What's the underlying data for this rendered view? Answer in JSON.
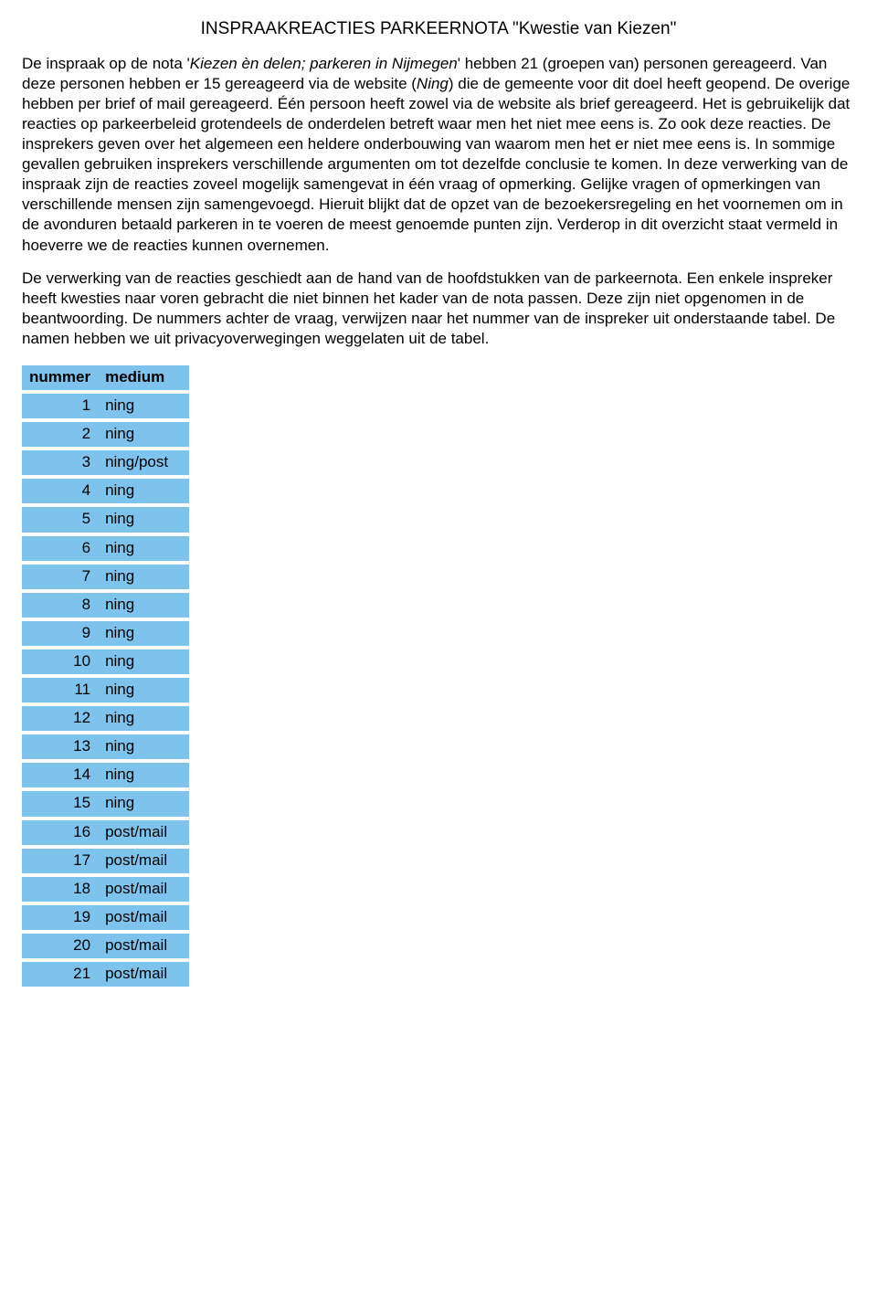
{
  "title": "INSPRAAKREACTIES PARKEERNOTA \"Kwestie van Kiezen\"",
  "para1_a": "De inspraak op de nota '",
  "para1_b": "Kiezen èn delen; parkeren in Nijmegen",
  "para1_c": "' hebben 21 (groepen van) personen gereageerd. Van deze personen hebben er 15 gereageerd via de website (",
  "para1_d": "Ning",
  "para1_e": ") die de gemeente voor dit doel heeft geopend. De overige hebben per brief of mail gereageerd. Één persoon heeft zowel via de website als brief gereageerd.",
  "para2": "Het is gebruikelijk dat reacties op parkeerbeleid grotendeels de onderdelen betreft waar men het niet mee eens is. Zo ook deze reacties. De insprekers geven over het algemeen een heldere onderbouwing van waarom men het er niet mee eens is. In sommige gevallen gebruiken insprekers verschillende argumenten om tot dezelfde conclusie te komen. In deze verwerking van de inspraak zijn de reacties zoveel mogelijk samengevat in één vraag of opmerking. Gelijke vragen of opmerkingen van verschillende mensen zijn samengevoegd. Hieruit blijkt dat de opzet van de bezoekersregeling en het voornemen om in de avonduren betaald parkeren in te voeren de meest genoemde punten zijn. Verderop in dit overzicht staat vermeld in hoeverre we de reacties kunnen overnemen.",
  "para3": "De verwerking van de reacties geschiedt aan de hand van de hoofdstukken van de parkeernota. Een enkele inspreker heeft kwesties naar voren gebracht die niet binnen het kader van de nota passen. Deze zijn niet opgenomen in de beantwoording. De nummers achter de vraag, verwijzen naar het nummer van de inspreker uit onderstaande tabel. De namen hebben we uit privacyoverwegingen weggelaten uit de tabel.",
  "table": {
    "columns": [
      "nummer",
      "medium"
    ],
    "rows": [
      [
        "1",
        "ning"
      ],
      [
        "2",
        "ning"
      ],
      [
        "3",
        "ning/post"
      ],
      [
        "4",
        "ning"
      ],
      [
        "5",
        "ning"
      ],
      [
        "6",
        "ning"
      ],
      [
        "7",
        "ning"
      ],
      [
        "8",
        "ning"
      ],
      [
        "9",
        "ning"
      ],
      [
        "10",
        "ning"
      ],
      [
        "11",
        "ning"
      ],
      [
        "12",
        "ning"
      ],
      [
        "13",
        "ning"
      ],
      [
        "14",
        "ning"
      ],
      [
        "15",
        "ning"
      ],
      [
        "16",
        "post/mail"
      ],
      [
        "17",
        "post/mail"
      ],
      [
        "18",
        "post/mail"
      ],
      [
        "19",
        "post/mail"
      ],
      [
        "20",
        "post/mail"
      ],
      [
        "21",
        "post/mail"
      ]
    ],
    "cell_bg": "#7ec3ec"
  }
}
